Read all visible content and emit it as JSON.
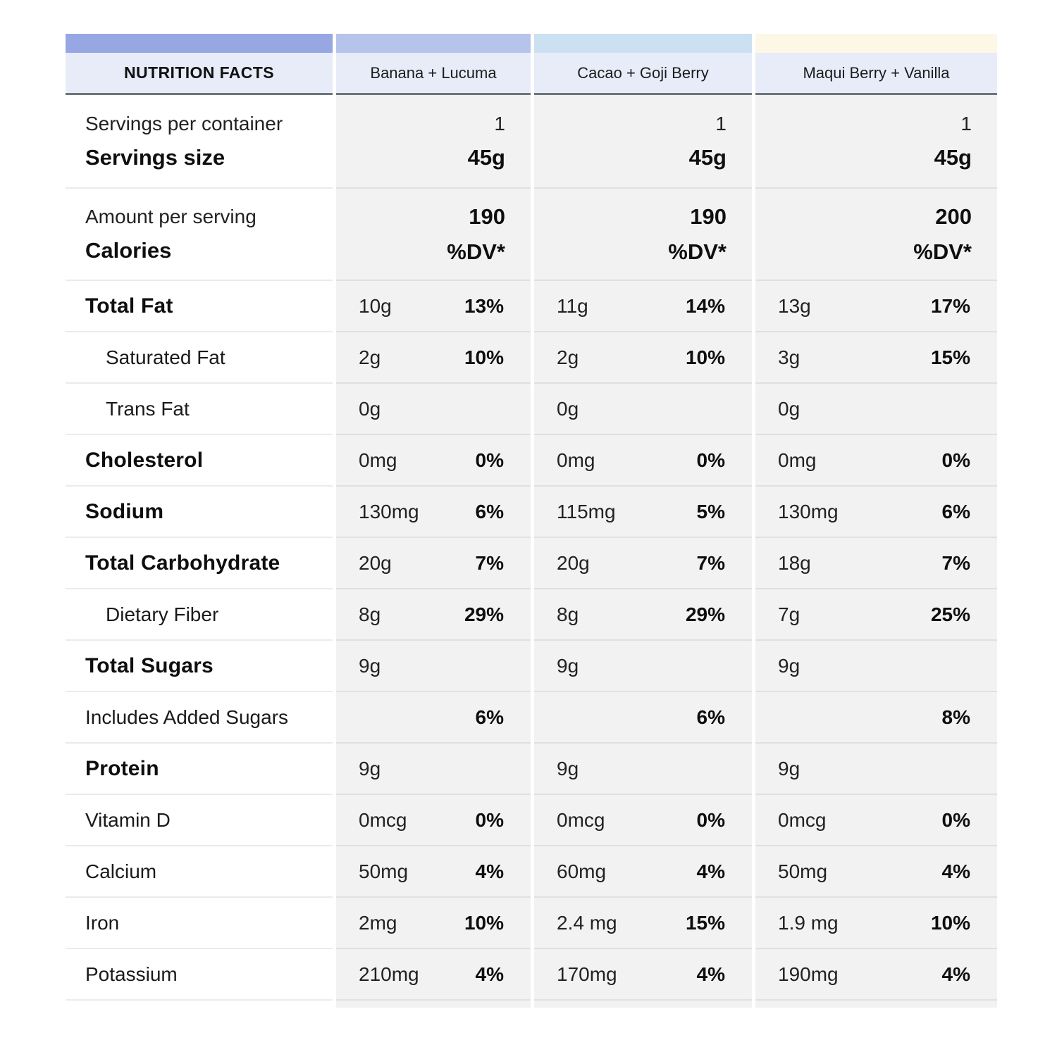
{
  "header": {
    "title": "NUTRITION FACTS",
    "title_bar_color": "#96a7e3",
    "products": [
      {
        "name": "Banana + Lucuma",
        "bar_color": "#b6c3eb"
      },
      {
        "name": "Cacao + Goji Berry",
        "bar_color": "#cbe0f0"
      },
      {
        "name": "Maqui Berry + Vanilla",
        "bar_color": "#fdf7e6"
      }
    ]
  },
  "colors": {
    "header_bg": "#e8ecf8",
    "header_border": "#70747b",
    "data_cell_bg": "#f2f2f2",
    "row_divider": "#e0e0e0"
  },
  "serving_row": {
    "label_top": "Servings per container",
    "label_bottom": "Servings size",
    "values": [
      {
        "top": "1",
        "bottom": "45g"
      },
      {
        "top": "1",
        "bottom": "45g"
      },
      {
        "top": "1",
        "bottom": "45g"
      }
    ]
  },
  "calories_row": {
    "label_top": "Amount per serving",
    "label_bottom": "Calories",
    "values": [
      {
        "top": "190",
        "bottom": "%DV*"
      },
      {
        "top": "190",
        "bottom": "%DV*"
      },
      {
        "top": "200",
        "bottom": "%DV*"
      }
    ]
  },
  "rows": [
    {
      "label": "Total Fat",
      "bold": true,
      "indent": false,
      "cells": [
        {
          "amount": "10g",
          "dv": "13%"
        },
        {
          "amount": "11g",
          "dv": "14%"
        },
        {
          "amount": "13g",
          "dv": "17%"
        }
      ]
    },
    {
      "label": "Saturated Fat",
      "bold": false,
      "indent": true,
      "cells": [
        {
          "amount": "2g",
          "dv": "10%"
        },
        {
          "amount": "2g",
          "dv": "10%"
        },
        {
          "amount": "3g",
          "dv": "15%"
        }
      ]
    },
    {
      "label": "Trans Fat",
      "bold": false,
      "indent": true,
      "cells": [
        {
          "amount": "0g",
          "dv": ""
        },
        {
          "amount": "0g",
          "dv": ""
        },
        {
          "amount": "0g",
          "dv": ""
        }
      ]
    },
    {
      "label": "Cholesterol",
      "bold": true,
      "indent": false,
      "cells": [
        {
          "amount": "0mg",
          "dv": "0%"
        },
        {
          "amount": "0mg",
          "dv": "0%"
        },
        {
          "amount": "0mg",
          "dv": "0%"
        }
      ]
    },
    {
      "label": "Sodium",
      "bold": true,
      "indent": false,
      "cells": [
        {
          "amount": "130mg",
          "dv": "6%"
        },
        {
          "amount": "115mg",
          "dv": "5%"
        },
        {
          "amount": "130mg",
          "dv": "6%"
        }
      ]
    },
    {
      "label": "Total Carbohydrate",
      "bold": true,
      "indent": false,
      "cells": [
        {
          "amount": "20g",
          "dv": "7%"
        },
        {
          "amount": "20g",
          "dv": "7%"
        },
        {
          "amount": "18g",
          "dv": "7%"
        }
      ]
    },
    {
      "label": "Dietary Fiber",
      "bold": false,
      "indent": true,
      "cells": [
        {
          "amount": "8g",
          "dv": "29%"
        },
        {
          "amount": "8g",
          "dv": "29%"
        },
        {
          "amount": "7g",
          "dv": "25%"
        }
      ]
    },
    {
      "label": "Total Sugars",
      "bold": true,
      "indent": false,
      "cells": [
        {
          "amount": "9g",
          "dv": ""
        },
        {
          "amount": "9g",
          "dv": ""
        },
        {
          "amount": "9g",
          "dv": ""
        }
      ]
    },
    {
      "label": "Includes Added Sugars",
      "bold": false,
      "indent": false,
      "cells": [
        {
          "amount": "",
          "dv": "6%"
        },
        {
          "amount": "",
          "dv": "6%"
        },
        {
          "amount": "",
          "dv": "8%"
        }
      ]
    },
    {
      "label": "Protein",
      "bold": true,
      "indent": false,
      "cells": [
        {
          "amount": "9g",
          "dv": ""
        },
        {
          "amount": "9g",
          "dv": ""
        },
        {
          "amount": "9g",
          "dv": ""
        }
      ]
    },
    {
      "label": "Vitamin D",
      "bold": false,
      "indent": false,
      "cells": [
        {
          "amount": "0mcg",
          "dv": "0%"
        },
        {
          "amount": "0mcg",
          "dv": "0%"
        },
        {
          "amount": "0mcg",
          "dv": "0%"
        }
      ]
    },
    {
      "label": "Calcium",
      "bold": false,
      "indent": false,
      "cells": [
        {
          "amount": "50mg",
          "dv": "4%"
        },
        {
          "amount": "60mg",
          "dv": "4%"
        },
        {
          "amount": "50mg",
          "dv": "4%"
        }
      ]
    },
    {
      "label": "Iron",
      "bold": false,
      "indent": false,
      "cells": [
        {
          "amount": "2mg",
          "dv": "10%"
        },
        {
          "amount": "2.4 mg",
          "dv": "15%"
        },
        {
          "amount": "1.9 mg",
          "dv": "10%"
        }
      ]
    },
    {
      "label": "Potassium",
      "bold": false,
      "indent": false,
      "cells": [
        {
          "amount": "210mg",
          "dv": "4%"
        },
        {
          "amount": "170mg",
          "dv": "4%"
        },
        {
          "amount": "190mg",
          "dv": "4%"
        }
      ]
    }
  ]
}
